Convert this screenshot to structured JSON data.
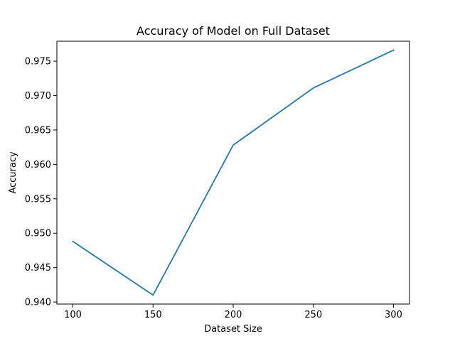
{
  "chart_data": {
    "type": "line",
    "title": "Accuracy of Model on Full Dataset",
    "xlabel": "Dataset Size",
    "ylabel": "Accuracy",
    "x": [
      100,
      150,
      200,
      250,
      300
    ],
    "series": [
      {
        "values": [
          0.9488,
          0.941,
          0.9628,
          0.9711,
          0.9766
        ],
        "color": "#1f77b4"
      }
    ],
    "xlim": [
      90,
      310
    ],
    "ylim": [
      0.9397,
      0.9779
    ],
    "xticks": [
      "100",
      "150",
      "200",
      "250",
      "300"
    ],
    "yticks": [
      "0.940",
      "0.945",
      "0.950",
      "0.955",
      "0.960",
      "0.965",
      "0.970",
      "0.975"
    ],
    "grid": false,
    "legend": false
  }
}
